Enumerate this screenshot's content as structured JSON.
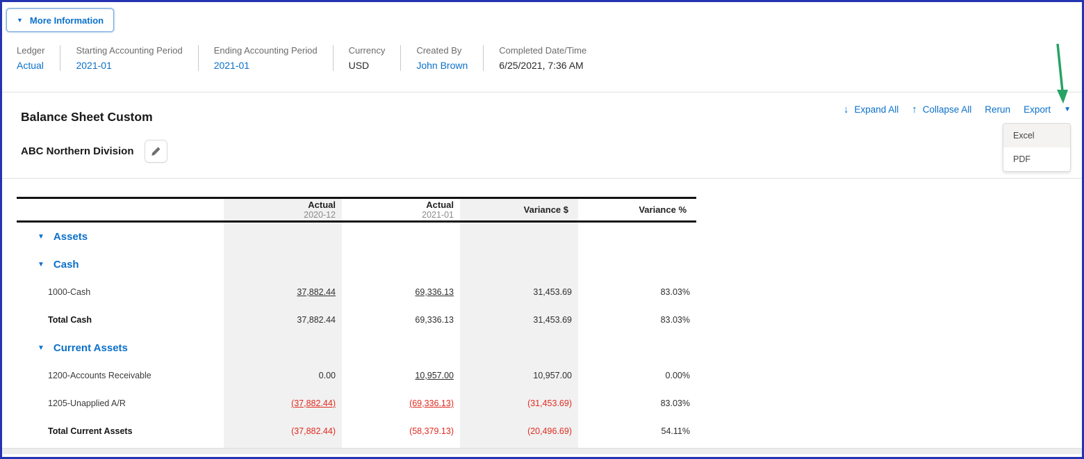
{
  "more_information": {
    "label": "More Information"
  },
  "info_bar": {
    "fields": [
      {
        "label": "Ledger",
        "value": "Actual",
        "link": true
      },
      {
        "label": "Starting Accounting Period",
        "value": "2021-01",
        "link": true
      },
      {
        "label": "Ending Accounting Period",
        "value": "2021-01",
        "link": true
      },
      {
        "label": "Currency",
        "value": "USD",
        "link": false
      },
      {
        "label": "Created By",
        "value": "John Brown",
        "link": true
      },
      {
        "label": "Completed Date/Time",
        "value": "6/25/2021, 7:36 AM",
        "link": false
      }
    ]
  },
  "toolbar": {
    "expand_all": "Expand All",
    "collapse_all": "Collapse All",
    "rerun": "Rerun",
    "export": "Export",
    "export_menu": [
      "Excel",
      "PDF"
    ]
  },
  "report": {
    "title": "Balance Sheet Custom",
    "entity": "ABC Northern Division"
  },
  "table": {
    "columns": [
      {
        "label": "Actual",
        "period": "2020-12"
      },
      {
        "label": "Actual",
        "period": "2021-01"
      },
      {
        "label": "Variance $",
        "period": ""
      },
      {
        "label": "Variance %",
        "period": ""
      }
    ],
    "rows": [
      {
        "type": "section",
        "label": "Assets",
        "values": []
      },
      {
        "type": "section",
        "label": "Cash",
        "values": []
      },
      {
        "type": "account",
        "label": "1000-Cash",
        "values": [
          {
            "text": "37,882.44",
            "link": true,
            "negative": false
          },
          {
            "text": "69,336.13",
            "link": true,
            "negative": false
          },
          {
            "text": "31,453.69",
            "link": false,
            "negative": false
          },
          {
            "text": "83.03%",
            "link": false,
            "negative": false
          }
        ]
      },
      {
        "type": "total",
        "label": "Total Cash",
        "values": [
          {
            "text": "37,882.44",
            "link": false,
            "negative": false
          },
          {
            "text": "69,336.13",
            "link": false,
            "negative": false
          },
          {
            "text": "31,453.69",
            "link": false,
            "negative": false
          },
          {
            "text": "83.03%",
            "link": false,
            "negative": false
          }
        ]
      },
      {
        "type": "section",
        "label": "Current Assets",
        "values": []
      },
      {
        "type": "account",
        "label": "1200-Accounts Receivable",
        "values": [
          {
            "text": "0.00",
            "link": false,
            "negative": false
          },
          {
            "text": "10,957.00",
            "link": true,
            "negative": false
          },
          {
            "text": "10,957.00",
            "link": false,
            "negative": false
          },
          {
            "text": "0.00%",
            "link": false,
            "negative": false
          }
        ]
      },
      {
        "type": "account",
        "label": "1205-Unapplied A/R",
        "values": [
          {
            "text": "(37,882.44)",
            "link": true,
            "negative": true
          },
          {
            "text": "(69,336.13)",
            "link": true,
            "negative": true
          },
          {
            "text": "(31,453.69)",
            "link": false,
            "negative": true
          },
          {
            "text": "83.03%",
            "link": false,
            "negative": false
          }
        ]
      },
      {
        "type": "total",
        "label": "Total Current Assets",
        "values": [
          {
            "text": "(37,882.44)",
            "link": false,
            "negative": true
          },
          {
            "text": "(58,379.13)",
            "link": false,
            "negative": true
          },
          {
            "text": "(20,496.69)",
            "link": false,
            "negative": true
          },
          {
            "text": "54.11%",
            "link": false,
            "negative": false
          }
        ]
      }
    ]
  },
  "colors": {
    "frame_border": "#2433b2",
    "accent_blue": "#0b70c9",
    "negative_red": "#e02b20",
    "annotation_green": "#27a365",
    "column_stripe": "#f1f1f1"
  }
}
